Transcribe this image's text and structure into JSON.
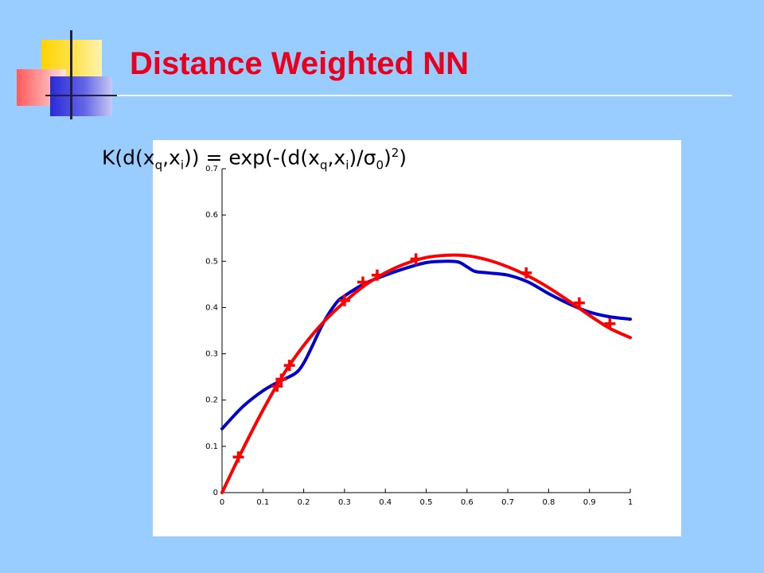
{
  "title": "Distance Weighted NN",
  "formula": {
    "k": "K(d(x",
    "q1": "q",
    "comma1": ",x",
    "i1": "i",
    "mid": ")) = exp(-(d(x",
    "q2": "q",
    "comma2": ",x",
    "i2": "i",
    "div": ")/",
    "sigma": "σ",
    "zero": "0",
    "close": ")",
    "two": "2",
    "end": ")"
  },
  "colors": {
    "background": "#99ccff",
    "title": "#e8001c",
    "red_series": "#ff0000",
    "blue_series": "#0000cc"
  },
  "chart_data": {
    "type": "line",
    "xlim": [
      0,
      1
    ],
    "ylim": [
      0,
      0.7
    ],
    "x_ticks": [
      0,
      0.1,
      0.2,
      0.3,
      0.4,
      0.5,
      0.6,
      0.7,
      0.8,
      0.9,
      1
    ],
    "x_tick_labels": [
      "0",
      "0.1",
      "0.2",
      "0.3",
      "0.4",
      "0.5",
      "0.6",
      "0.7",
      "0.8",
      "0.9",
      "1"
    ],
    "y_ticks": [
      0,
      0.1,
      0.2,
      0.3,
      0.4,
      0.5,
      0.6,
      0.7
    ],
    "y_tick_labels": [
      "0",
      "0.1",
      "0.2",
      "0.3",
      "0.4",
      "0.5",
      "0.6",
      "0.7"
    ],
    "grid": false,
    "series": [
      {
        "style": "line",
        "color": "#0000cc",
        "x": [
          0,
          0.05,
          0.1,
          0.14,
          0.18,
          0.2,
          0.22,
          0.25,
          0.28,
          0.3,
          0.35,
          0.4,
          0.45,
          0.5,
          0.55,
          0.58,
          0.6,
          0.62,
          0.65,
          0.7,
          0.75,
          0.8,
          0.85,
          0.9,
          0.95,
          1
        ],
        "y": [
          0.138,
          0.185,
          0.22,
          0.24,
          0.258,
          0.28,
          0.315,
          0.37,
          0.41,
          0.425,
          0.452,
          0.47,
          0.485,
          0.497,
          0.5,
          0.498,
          0.488,
          0.478,
          0.475,
          0.47,
          0.455,
          0.43,
          0.408,
          0.39,
          0.38,
          0.375
        ]
      },
      {
        "style": "line",
        "color": "#ff0000",
        "x": [
          0,
          0.05,
          0.1,
          0.15,
          0.2,
          0.25,
          0.3,
          0.35,
          0.4,
          0.45,
          0.5,
          0.55,
          0.6,
          0.65,
          0.7,
          0.75,
          0.8,
          0.85,
          0.9,
          0.95,
          1
        ],
        "y": [
          0,
          0.092,
          0.178,
          0.255,
          0.318,
          0.37,
          0.412,
          0.448,
          0.475,
          0.495,
          0.508,
          0.513,
          0.512,
          0.503,
          0.488,
          0.468,
          0.443,
          0.414,
          0.383,
          0.355,
          0.335
        ]
      },
      {
        "style": "markers",
        "marker": "+",
        "color": "#ff0000",
        "x": [
          0.04,
          0.135,
          0.145,
          0.165,
          0.3,
          0.345,
          0.38,
          0.475,
          0.745,
          0.875,
          0.95
        ],
        "y": [
          0.077,
          0.23,
          0.245,
          0.275,
          0.415,
          0.455,
          0.47,
          0.505,
          0.475,
          0.41,
          0.365
        ]
      }
    ]
  }
}
